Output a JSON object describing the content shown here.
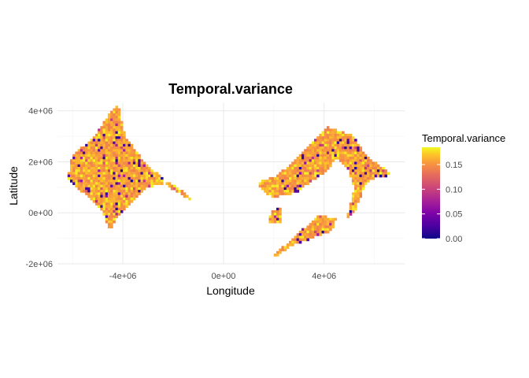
{
  "chart_data": {
    "type": "heatmap",
    "title": "Temporal.variance",
    "xlabel": "Longitude",
    "ylabel": "Latitude",
    "x_ticks": [
      "-4e+06",
      "0e+00",
      "4e+06"
    ],
    "x_tick_values": [
      -4000000,
      0,
      4000000
    ],
    "y_ticks": [
      "4e+06",
      "2e+06",
      "0e+00",
      "-2e+06"
    ],
    "y_tick_values": [
      4000000,
      2000000,
      0,
      -2000000
    ],
    "xlim": [
      -6600000,
      7200000
    ],
    "ylim": [
      -2000000,
      4300000
    ],
    "grid": true,
    "legend": {
      "title": "Temporal.variance",
      "position": "right",
      "ticks": [
        "0.15",
        "0.10",
        "0.05",
        "0.00"
      ],
      "tick_values": [
        0.15,
        0.1,
        0.05,
        0.0
      ],
      "range": [
        0,
        0.185
      ],
      "colormap": "plasma"
    },
    "regions": [
      {
        "name": "western landmass",
        "outline": [
          [
            -6200000,
            1400000
          ],
          [
            -6000000,
            2300000
          ],
          [
            -5200000,
            2900000
          ],
          [
            -4600000,
            3800000
          ],
          [
            -4200000,
            4300000
          ],
          [
            -3900000,
            3000000
          ],
          [
            -3000000,
            1800000
          ],
          [
            -2400000,
            1400000
          ],
          [
            -2300000,
            1100000
          ],
          [
            -1300000,
            500000
          ],
          [
            -1500000,
            800000
          ],
          [
            -2200000,
            1200000
          ],
          [
            -3000000,
            1000000
          ],
          [
            -3500000,
            500000
          ],
          [
            -4000000,
            0
          ],
          [
            -4300000,
            -300000
          ],
          [
            -4500000,
            -700000
          ],
          [
            -4800000,
            0
          ],
          [
            -5300000,
            600000
          ],
          [
            -5900000,
            1000000
          ]
        ]
      },
      {
        "name": "eastern landmass north",
        "outline": [
          [
            1400000,
            1200000
          ],
          [
            2000000,
            1400000
          ],
          [
            2800000,
            2000000
          ],
          [
            3500000,
            2700000
          ],
          [
            4100000,
            3400000
          ],
          [
            4700000,
            3200000
          ],
          [
            5200000,
            3000000
          ],
          [
            5600000,
            2300000
          ],
          [
            6700000,
            1500000
          ],
          [
            5800000,
            1300000
          ],
          [
            5600000,
            1000000
          ],
          [
            5200000,
            0
          ],
          [
            4900000,
            -200000
          ],
          [
            5200000,
            1000000
          ],
          [
            5000000,
            1600000
          ],
          [
            4500000,
            2200000
          ],
          [
            4100000,
            1600000
          ],
          [
            3600000,
            1300000
          ],
          [
            2900000,
            800000
          ],
          [
            2000000,
            600000
          ],
          [
            1500000,
            900000
          ]
        ]
      },
      {
        "name": "eastern landmass south",
        "outline": [
          [
            1800000,
            -1800000
          ],
          [
            2400000,
            -1300000
          ],
          [
            3200000,
            -600000
          ],
          [
            3800000,
            -100000
          ],
          [
            4500000,
            -200000
          ],
          [
            4300000,
            -700000
          ],
          [
            3500000,
            -1000000
          ],
          [
            2700000,
            -1300000
          ],
          [
            2100000,
            -1700000
          ]
        ]
      },
      {
        "name": "eastern islet",
        "outline": [
          [
            1800000,
            -400000
          ],
          [
            2300000,
            -400000
          ],
          [
            2300000,
            200000
          ],
          [
            1900000,
            100000
          ]
        ]
      }
    ]
  }
}
